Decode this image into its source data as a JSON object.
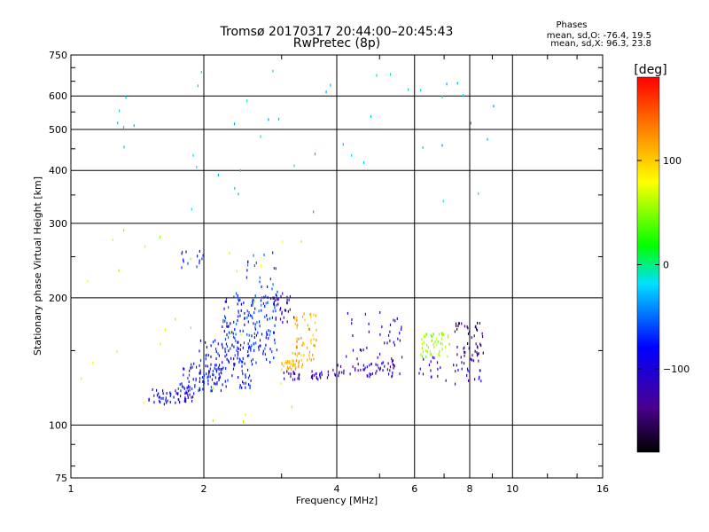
{
  "chart_data": {
    "type": "scatter",
    "title": "Tromsø 20170317 20:44:00–20:45:43",
    "subtitle": "RwPretec (8p)",
    "xlabel": "Frequency [MHz]",
    "ylabel": "Stationary phase Virtual Height [km]",
    "x_scale": "log",
    "y_scale": "log",
    "xlim": [
      1,
      16
    ],
    "ylim": [
      75,
      750
    ],
    "x_ticks": [
      1,
      2,
      4,
      6,
      8,
      10,
      16
    ],
    "x_tick_labels": [
      "1",
      "2",
      "4",
      "6",
      "8",
      "10",
      "16"
    ],
    "y_ticks": [
      75,
      100,
      200,
      300,
      400,
      500,
      600,
      750
    ],
    "y_tick_labels": [
      "75",
      "100",
      "200",
      "300",
      "400",
      "500",
      "600",
      "750"
    ],
    "grid": true,
    "stats": {
      "header": "Phases",
      "line1": "mean, sd,O: -76.4, 19.5",
      "line2": "mean, sd,X:  96.3, 23.8"
    },
    "colorbar": {
      "label": "[deg]",
      "range": [
        -180,
        180
      ],
      "ticks": [
        100,
        0,
        -100
      ],
      "tick_labels": [
        "100",
        "0",
        "−100"
      ]
    },
    "clusters": [
      {
        "f_range": [
          1.5,
          1.9
        ],
        "h_range": [
          112,
          122
        ],
        "phase": -110,
        "n": 55
      },
      {
        "f_range": [
          1.75,
          2.2
        ],
        "h_range": [
          120,
          140
        ],
        "phase": -100,
        "n": 70
      },
      {
        "f_range": [
          1.95,
          2.6
        ],
        "h_range": [
          122,
          160
        ],
        "phase": -100,
        "n": 110
      },
      {
        "f_range": [
          2.2,
          2.95
        ],
        "h_range": [
          140,
          205
        ],
        "phase": -90,
        "n": 160
      },
      {
        "f_range": [
          2.5,
          2.95
        ],
        "h_range": [
          190,
          260
        ],
        "phase": -80,
        "n": 30
      },
      {
        "f_range": [
          1.75,
          2.0
        ],
        "h_range": [
          235,
          258
        ],
        "phase": -100,
        "n": 14
      },
      {
        "f_range": [
          2.85,
          3.2
        ],
        "h_range": [
          175,
          205
        ],
        "phase": -130,
        "n": 30
      },
      {
        "f_range": [
          3.0,
          3.35
        ],
        "h_range": [
          135,
          142
        ],
        "phase": 110,
        "n": 35
      },
      {
        "f_range": [
          3.2,
          3.6
        ],
        "h_range": [
          142,
          185
        ],
        "phase": 115,
        "n": 55
      },
      {
        "f_range": [
          3.0,
          3.3
        ],
        "h_range": [
          128,
          134
        ],
        "phase": -125,
        "n": 18
      },
      {
        "f_range": [
          3.5,
          3.85
        ],
        "h_range": [
          128,
          134
        ],
        "phase": -130,
        "n": 20
      },
      {
        "f_range": [
          3.9,
          5.6
        ],
        "h_range": [
          130,
          140
        ],
        "phase": -125,
        "n": 55
      },
      {
        "f_range": [
          4.2,
          5.8
        ],
        "h_range": [
          140,
          185
        ],
        "phase": -120,
        "n": 40
      },
      {
        "f_range": [
          6.2,
          7.2
        ],
        "h_range": [
          145,
          165
        ],
        "phase": 45,
        "n": 50
      },
      {
        "f_range": [
          7.4,
          8.6
        ],
        "h_range": [
          145,
          175
        ],
        "phase": -150,
        "n": 45
      },
      {
        "f_range": [
          6.0,
          8.5
        ],
        "h_range": [
          125,
          145
        ],
        "phase": -120,
        "n": 40
      },
      {
        "f_range": [
          1.05,
          9.5
        ],
        "h_range": [
          300,
          700
        ],
        "phase": -40,
        "n": 45
      },
      {
        "f_range": [
          1.05,
          3.5
        ],
        "h_range": [
          100,
          300
        ],
        "phase": 60,
        "n": 30
      }
    ]
  }
}
